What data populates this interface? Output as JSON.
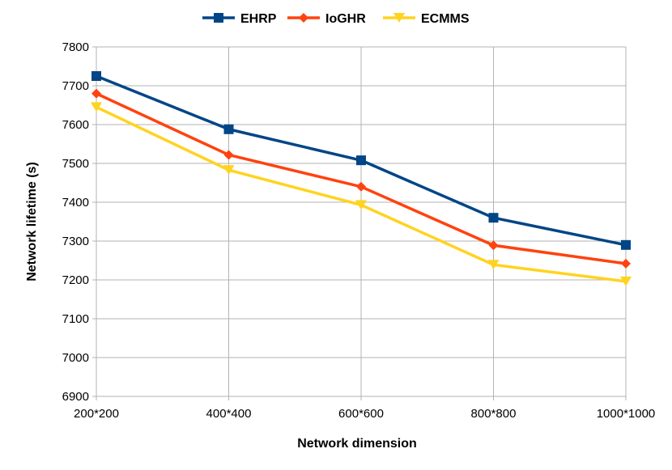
{
  "chart_data": {
    "type": "line",
    "title": "",
    "xlabel": "Network dimension",
    "ylabel": "Network lifetime (s)",
    "categories": [
      "200*200",
      "400*400",
      "600*600",
      "800*800",
      "1000*1000"
    ],
    "ylim": [
      6900,
      7800
    ],
    "yticks": [
      6900,
      7000,
      7100,
      7200,
      7300,
      7400,
      7500,
      7600,
      7700,
      7800
    ],
    "grid": true,
    "legend_position": "top-center",
    "series": [
      {
        "name": "EHRP",
        "color": "#004586",
        "marker": "square",
        "values": [
          7725,
          7588,
          7508,
          7360,
          7290
        ]
      },
      {
        "name": "IoGHR",
        "color": "#ff420e",
        "marker": "diamond",
        "values": [
          7680,
          7522,
          7440,
          7289,
          7242
        ]
      },
      {
        "name": "ECMMS",
        "color": "#ffd320",
        "marker": "triangle-down",
        "values": [
          7645,
          7483,
          7393,
          7239,
          7196
        ]
      }
    ]
  }
}
